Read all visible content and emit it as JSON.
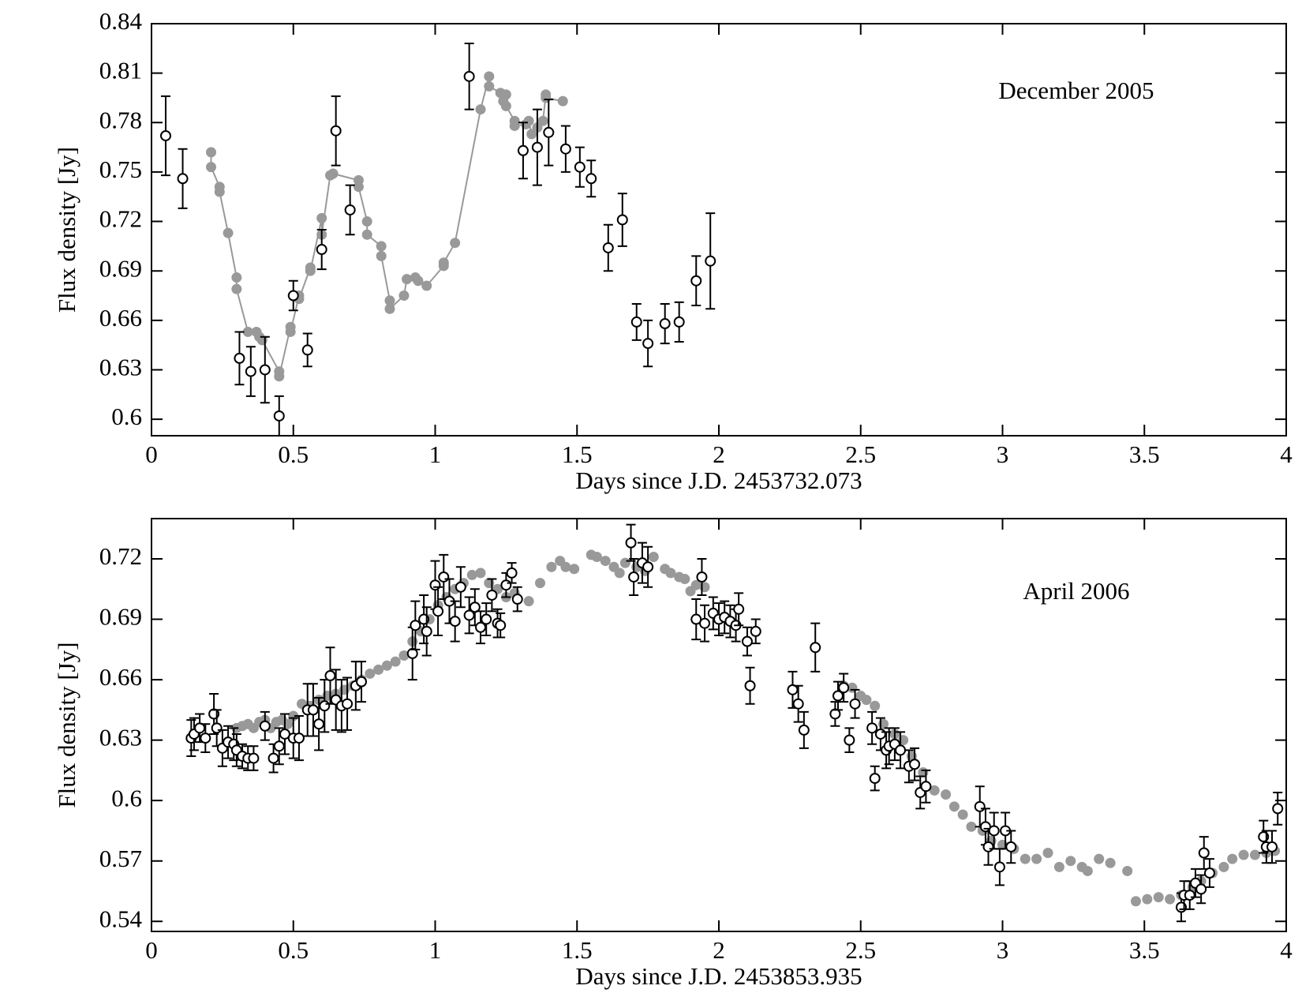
{
  "chart_data": [
    {
      "type": "scatter",
      "annotation": "December 2005",
      "xlabel": "Days since J.D. 2453732.073",
      "ylabel": "Flux density [Jy]",
      "xlim": [
        0,
        4
      ],
      "xticks": [
        0,
        0.5,
        1,
        1.5,
        2,
        2.5,
        3,
        3.5,
        4
      ],
      "ylim": [
        0.59,
        0.84
      ],
      "yticks": [
        0.6,
        0.63,
        0.66,
        0.69,
        0.72,
        0.75,
        0.78,
        0.81,
        0.84
      ],
      "series": [
        {
          "color": "#999999",
          "marker": "filled",
          "line": true,
          "x": [
            0.21,
            0.21,
            0.24,
            0.24,
            0.27,
            0.3,
            0.3,
            0.34,
            0.37,
            0.38,
            0.39,
            0.45,
            0.45,
            0.49,
            0.49,
            0.52,
            0.52,
            0.56,
            0.56,
            0.6,
            0.6,
            0.63,
            0.64,
            0.73,
            0.73,
            0.76,
            0.76,
            0.81,
            0.81,
            0.84,
            0.84,
            0.89,
            0.9,
            0.93,
            0.94,
            0.97,
            1.03,
            1.03,
            1.07,
            1.16,
            1.19,
            1.19,
            1.23,
            1.24,
            1.25,
            1.25,
            1.28,
            1.28,
            1.32,
            1.33,
            1.34,
            1.36,
            1.38,
            1.39,
            1.39,
            1.45
          ],
          "values": [
            0.762,
            0.753,
            0.741,
            0.738,
            0.713,
            0.686,
            0.679,
            0.653,
            0.653,
            0.65,
            0.648,
            0.629,
            0.626,
            0.656,
            0.653,
            0.675,
            0.673,
            0.692,
            0.69,
            0.722,
            0.712,
            0.748,
            0.749,
            0.745,
            0.741,
            0.72,
            0.712,
            0.705,
            0.699,
            0.672,
            0.667,
            0.675,
            0.685,
            0.686,
            0.684,
            0.681,
            0.693,
            0.695,
            0.707,
            0.788,
            0.808,
            0.802,
            0.798,
            0.793,
            0.797,
            0.79,
            0.781,
            0.778,
            0.779,
            0.781,
            0.773,
            0.777,
            0.781,
            0.797,
            0.795,
            0.793
          ]
        },
        {
          "color": "#000000",
          "marker": "open",
          "line": false,
          "x": [
            0.05,
            0.11,
            0.31,
            0.35,
            0.4,
            0.45,
            0.5,
            0.55,
            0.6,
            0.65,
            0.7,
            1.12,
            1.31,
            1.36,
            1.4,
            1.46,
            1.51,
            1.55,
            1.61,
            1.66,
            1.71,
            1.75,
            1.81,
            1.86,
            1.92,
            1.97
          ],
          "values": [
            0.772,
            0.746,
            0.637,
            0.629,
            0.63,
            0.602,
            0.675,
            0.642,
            0.703,
            0.775,
            0.727,
            0.808,
            0.763,
            0.765,
            0.774,
            0.764,
            0.753,
            0.746,
            0.704,
            0.721,
            0.659,
            0.646,
            0.658,
            0.659,
            0.684,
            0.696
          ],
          "errors": [
            0.024,
            0.018,
            0.016,
            0.015,
            0.02,
            0.012,
            0.009,
            0.01,
            0.012,
            0.021,
            0.015,
            0.02,
            0.017,
            0.023,
            0.02,
            0.014,
            0.012,
            0.011,
            0.014,
            0.016,
            0.011,
            0.014,
            0.012,
            0.012,
            0.015,
            0.029
          ]
        }
      ]
    },
    {
      "type": "scatter",
      "annotation": "April 2006",
      "xlabel": "Days since J.D. 2453853.935",
      "ylabel": "Flux density [Jy]",
      "xlim": [
        0,
        4
      ],
      "xticks": [
        0,
        0.5,
        1,
        1.5,
        2,
        2.5,
        3,
        3.5,
        4
      ],
      "ylim": [
        0.535,
        0.74
      ],
      "yticks": [
        0.54,
        0.57,
        0.6,
        0.63,
        0.66,
        0.69,
        0.72
      ],
      "series": [
        {
          "color": "#999999",
          "marker": "filled",
          "line": false,
          "x": [
            0.3,
            0.32,
            0.34,
            0.36,
            0.38,
            0.4,
            0.42,
            0.44,
            0.46,
            0.48,
            0.5,
            0.53,
            0.56,
            0.59,
            0.62,
            0.65,
            0.68,
            0.71,
            0.74,
            0.77,
            0.8,
            0.83,
            0.86,
            0.89,
            0.92,
            0.95,
            0.98,
            1.01,
            1.04,
            1.07,
            1.1,
            1.13,
            1.16,
            1.19,
            1.22,
            1.25,
            1.28,
            1.33,
            1.37,
            1.41,
            1.44,
            1.46,
            1.49,
            1.55,
            1.57,
            1.6,
            1.63,
            1.65,
            1.67,
            1.71,
            1.74,
            1.77,
            1.81,
            1.83,
            1.86,
            1.88,
            1.9,
            1.92,
            1.95,
            2.44,
            2.47,
            2.5,
            2.52,
            2.55,
            2.58,
            2.62,
            2.65,
            2.68,
            2.72,
            2.76,
            2.8,
            2.83,
            2.86,
            2.89,
            2.93,
            2.96,
            3.0,
            3.04,
            3.08,
            3.12,
            3.16,
            3.2,
            3.24,
            3.28,
            3.3,
            3.34,
            3.38,
            3.44,
            3.47,
            3.51,
            3.55,
            3.59,
            3.63,
            3.67,
            3.7,
            3.74,
            3.78,
            3.81,
            3.85,
            3.89,
            3.93,
            3.96
          ],
          "values": [
            0.636,
            0.637,
            0.638,
            0.636,
            0.639,
            0.64,
            0.636,
            0.639,
            0.64,
            0.638,
            0.642,
            0.648,
            0.647,
            0.65,
            0.652,
            0.653,
            0.655,
            0.657,
            0.66,
            0.663,
            0.665,
            0.667,
            0.669,
            0.672,
            0.679,
            0.684,
            0.69,
            0.697,
            0.701,
            0.705,
            0.708,
            0.712,
            0.713,
            0.708,
            0.705,
            0.701,
            0.703,
            0.699,
            0.708,
            0.716,
            0.719,
            0.716,
            0.715,
            0.722,
            0.721,
            0.719,
            0.716,
            0.713,
            0.718,
            0.716,
            0.714,
            0.721,
            0.715,
            0.713,
            0.711,
            0.71,
            0.704,
            0.707,
            0.706,
            0.657,
            0.656,
            0.652,
            0.65,
            0.647,
            0.638,
            0.633,
            0.63,
            0.622,
            0.614,
            0.605,
            0.603,
            0.597,
            0.593,
            0.587,
            0.585,
            0.58,
            0.578,
            0.576,
            0.571,
            0.571,
            0.574,
            0.567,
            0.57,
            0.567,
            0.565,
            0.571,
            0.569,
            0.565,
            0.55,
            0.551,
            0.552,
            0.551,
            0.553,
            0.557,
            0.56,
            0.564,
            0.567,
            0.571,
            0.573,
            0.573,
            0.574,
            0.575
          ]
        },
        {
          "color": "#000000",
          "marker": "open",
          "line": false,
          "x": [
            0.14,
            0.15,
            0.17,
            0.19,
            0.22,
            0.23,
            0.25,
            0.27,
            0.29,
            0.3,
            0.32,
            0.34,
            0.36,
            0.4,
            0.43,
            0.45,
            0.47,
            0.5,
            0.52,
            0.55,
            0.57,
            0.59,
            0.61,
            0.63,
            0.65,
            0.67,
            0.69,
            0.72,
            0.74,
            0.92,
            0.93,
            0.96,
            0.97,
            1.0,
            1.01,
            1.03,
            1.05,
            1.07,
            1.09,
            1.12,
            1.14,
            1.16,
            1.18,
            1.2,
            1.22,
            1.23,
            1.25,
            1.27,
            1.29,
            1.69,
            1.7,
            1.73,
            1.75,
            1.92,
            1.94,
            1.95,
            1.98,
            2.0,
            2.02,
            2.04,
            2.06,
            2.07,
            2.1,
            2.11,
            2.13,
            2.26,
            2.28,
            2.3,
            2.34,
            2.41,
            2.42,
            2.44,
            2.46,
            2.48,
            2.54,
            2.55,
            2.57,
            2.59,
            2.6,
            2.62,
            2.64,
            2.67,
            2.69,
            2.71,
            2.73,
            2.92,
            2.94,
            2.95,
            2.97,
            2.99,
            3.01,
            3.03,
            3.63,
            3.64,
            3.66,
            3.68,
            3.7,
            3.71,
            3.73,
            3.92,
            3.93,
            3.95,
            3.97
          ],
          "values": [
            0.631,
            0.633,
            0.636,
            0.631,
            0.643,
            0.636,
            0.626,
            0.629,
            0.628,
            0.625,
            0.622,
            0.621,
            0.621,
            0.637,
            0.621,
            0.627,
            0.633,
            0.631,
            0.631,
            0.645,
            0.645,
            0.638,
            0.647,
            0.662,
            0.65,
            0.647,
            0.648,
            0.657,
            0.659,
            0.673,
            0.687,
            0.69,
            0.684,
            0.707,
            0.694,
            0.711,
            0.699,
            0.689,
            0.706,
            0.692,
            0.696,
            0.686,
            0.69,
            0.702,
            0.688,
            0.687,
            0.707,
            0.713,
            0.7,
            0.728,
            0.711,
            0.718,
            0.716,
            0.69,
            0.711,
            0.688,
            0.693,
            0.69,
            0.691,
            0.689,
            0.687,
            0.695,
            0.679,
            0.657,
            0.684,
            0.655,
            0.648,
            0.635,
            0.676,
            0.643,
            0.652,
            0.656,
            0.63,
            0.648,
            0.636,
            0.611,
            0.633,
            0.625,
            0.627,
            0.628,
            0.625,
            0.617,
            0.618,
            0.604,
            0.607,
            0.597,
            0.587,
            0.577,
            0.585,
            0.567,
            0.585,
            0.577,
            0.547,
            0.553,
            0.553,
            0.559,
            0.556,
            0.574,
            0.564,
            0.582,
            0.577,
            0.577,
            0.596
          ],
          "errors": [
            0.009,
            0.008,
            0.007,
            0.007,
            0.01,
            0.009,
            0.009,
            0.008,
            0.008,
            0.008,
            0.006,
            0.006,
            0.006,
            0.007,
            0.007,
            0.009,
            0.01,
            0.01,
            0.011,
            0.013,
            0.013,
            0.013,
            0.013,
            0.014,
            0.015,
            0.013,
            0.013,
            0.012,
            0.01,
            0.013,
            0.012,
            0.012,
            0.012,
            0.012,
            0.012,
            0.011,
            0.011,
            0.01,
            0.01,
            0.009,
            0.009,
            0.008,
            0.008,
            0.008,
            0.007,
            0.006,
            0.006,
            0.005,
            0.006,
            0.009,
            0.009,
            0.01,
            0.01,
            0.01,
            0.009,
            0.009,
            0.008,
            0.008,
            0.008,
            0.008,
            0.008,
            0.008,
            0.007,
            0.009,
            0.006,
            0.009,
            0.009,
            0.009,
            0.012,
            0.006,
            0.007,
            0.007,
            0.006,
            0.007,
            0.008,
            0.006,
            0.008,
            0.009,
            0.009,
            0.008,
            0.009,
            0.008,
            0.008,
            0.008,
            0.008,
            0.01,
            0.009,
            0.009,
            0.009,
            0.009,
            0.009,
            0.008,
            0.007,
            0.007,
            0.007,
            0.007,
            0.007,
            0.008,
            0.007,
            0.008,
            0.008,
            0.008,
            0.008
          ]
        }
      ]
    }
  ]
}
